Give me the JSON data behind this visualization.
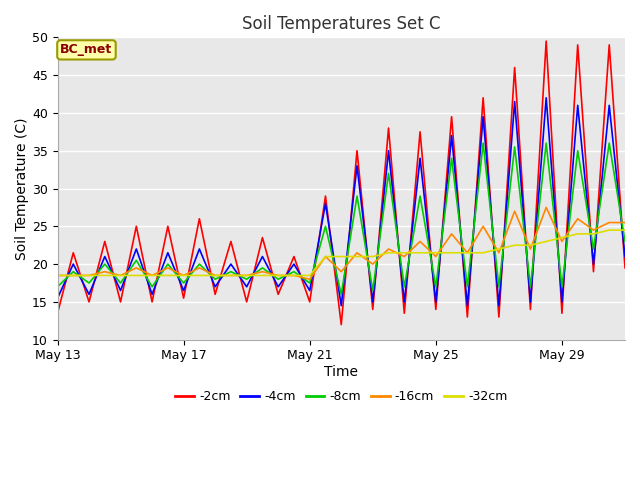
{
  "title": "Soil Temperatures Set C",
  "xlabel": "Time",
  "ylabel": "Soil Temperature (C)",
  "ylim": [
    10,
    50
  ],
  "fig_bg_color": "#ffffff",
  "plot_bg_color": "#e8e8e8",
  "bc_met_label": "BC_met",
  "legend_entries": [
    "-2cm",
    "-4cm",
    "-8cm",
    "-16cm",
    "-32cm"
  ],
  "line_colors": [
    "#ff0000",
    "#0000ff",
    "#00cc00",
    "#ff8800",
    "#dddd00"
  ],
  "xtick_labels": [
    "May 13",
    "May 17",
    "May 21",
    "May 25",
    "May 29"
  ],
  "title_fontsize": 12,
  "axis_label_fontsize": 10,
  "tick_fontsize": 9,
  "red": [
    13.5,
    21.5,
    15,
    23,
    15,
    25,
    15,
    25,
    15.5,
    26,
    16,
    23,
    15,
    23.5,
    16,
    21,
    15,
    29,
    12,
    35,
    14,
    38,
    13.5,
    37.5,
    14,
    39.5,
    13,
    42,
    13,
    46,
    14,
    49.5,
    13.5,
    49,
    19,
    49,
    19.5
  ],
  "blue": [
    15.5,
    20,
    16,
    21,
    16.5,
    22,
    16,
    21.5,
    16.5,
    22,
    17,
    20,
    17,
    21,
    17,
    20,
    16.5,
    28,
    14.5,
    33,
    15,
    35,
    15,
    34,
    15,
    37,
    14.5,
    39.5,
    14.5,
    41.5,
    15,
    42,
    15,
    41,
    20,
    41,
    21
  ],
  "green": [
    17,
    19,
    17.5,
    20,
    17.5,
    20.5,
    17,
    20,
    17.5,
    20,
    18,
    19,
    18,
    19.5,
    18,
    19,
    17.5,
    25,
    16,
    29,
    16.5,
    32,
    17,
    29,
    17,
    34,
    17,
    36,
    17,
    35.5,
    17,
    36,
    17,
    35,
    22,
    36,
    23
  ],
  "orange": [
    18.5,
    18.5,
    18.5,
    19,
    18.5,
    19.5,
    18.5,
    19.5,
    18.5,
    19.5,
    18.5,
    18.5,
    18.5,
    19,
    18.5,
    18.5,
    18,
    21,
    19,
    21.5,
    20,
    22,
    21,
    23,
    21,
    24,
    21.5,
    25,
    21.5,
    27,
    22,
    27.5,
    23,
    26,
    24.5,
    25.5,
    25.5
  ],
  "yellow": [
    18.5,
    18.5,
    18.5,
    18.5,
    18.5,
    18.5,
    18.5,
    18.5,
    18.5,
    18.5,
    18.5,
    18.5,
    18.5,
    18.5,
    18.5,
    18.5,
    18.5,
    21,
    21,
    21,
    21,
    21.5,
    21.5,
    21.5,
    21.5,
    21.5,
    21.5,
    21.5,
    22,
    22.5,
    22.5,
    23,
    23.5,
    24,
    24,
    24.5,
    24.5
  ]
}
